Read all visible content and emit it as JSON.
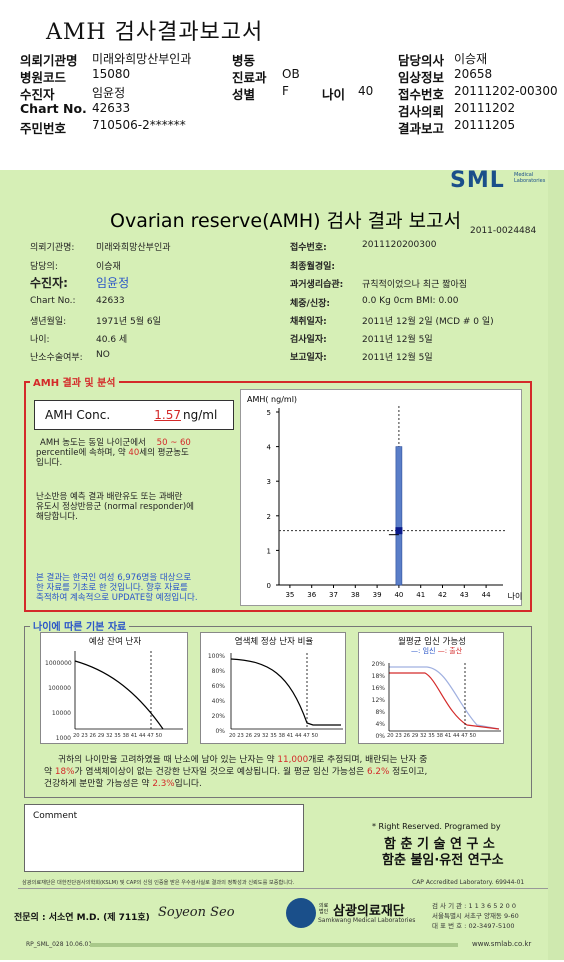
{
  "header": {
    "title": "AMH 검사결과보고서",
    "rows": [
      {
        "l1": "의뢰기관명",
        "v1": "미래와희망산부인과",
        "l2": "병동",
        "v2": "",
        "l3": "",
        "v3": "",
        "l4": "담당의사",
        "v4": "이승재"
      },
      {
        "l1": "병원코드",
        "v1": "15080",
        "l2": "진료과",
        "v2": "OB",
        "l3": "",
        "v3": "",
        "l4": "임상정보",
        "v4": "20658"
      },
      {
        "l1": "수진자",
        "v1": "임윤정",
        "l2": "성별",
        "v2": "F",
        "l3": "나이",
        "v3": "40",
        "l4": "접수번호",
        "v4": "20111202-00300"
      },
      {
        "l1": "Chart No.",
        "v1": "42633",
        "l2": "",
        "v2": "",
        "l3": "",
        "v3": "",
        "l4": "검사의뢰",
        "v4": "20111202"
      },
      {
        "l1": "주민번호",
        "v1": "710506-2******",
        "l2": "",
        "v2": "",
        "l3": "",
        "v3": "",
        "l4": "결과보고",
        "v4": "20111205"
      }
    ]
  },
  "report": {
    "logo": "SML",
    "logo_sub": "Medical Laboratories",
    "title": "Ovarian reserve(AMH) 검사 결과 보고서",
    "doc_no": "2011-0024484",
    "left": [
      {
        "label": "의뢰기관명:",
        "value": "미래와희망산부인과"
      },
      {
        "label": "담당의:",
        "value": "이승재"
      },
      {
        "label": "수진자:",
        "value": "임윤정"
      },
      {
        "label": "Chart No.:",
        "value": "42633"
      },
      {
        "label": "생년월일:",
        "value": "1971년 5월 6일"
      },
      {
        "label": "나이:",
        "value": "40.6 세"
      },
      {
        "label": "난소수술여부:",
        "value": "NO"
      }
    ],
    "right": [
      {
        "label": "접수번호:",
        "value": "2011120200300"
      },
      {
        "label": "최종월경일:",
        "value": ""
      },
      {
        "label": "과거생리습관:",
        "value": "규칙적이었으나 최근 짧아짐"
      },
      {
        "label": "체중/신장:",
        "value": "0.0 Kg      0cm   BMI:   0.00"
      },
      {
        "label": "채취일자:",
        "value": "2011년 12월 2일   (MCD # 0 일)"
      },
      {
        "label": "검사일자:",
        "value": "2011년 12월 5일"
      },
      {
        "label": "보고일자:",
        "value": "2011년 12월 5일"
      }
    ]
  },
  "amh": {
    "section_title": "AMH 결과 및 분석",
    "conc_label": "AMH Conc.",
    "conc_value": "1.57",
    "conc_unit": "ng/ml",
    "p1a": "AMH 농도는 동일 나이군에서",
    "p1_pct": "50 ~ 60",
    "p1b": "percentile에 속하며, 약",
    "p1_age": "40",
    "p1c": "세의 평균농도",
    "p1d": "입니다.",
    "p2": [
      "난소반응 예측 결과 배란유도 또는 과배란",
      "유도시 정상반응군 (normal responder)에",
      "해당합니다."
    ],
    "p3": [
      "본 결과는 한국인 여성 6,976명을 대상으로",
      "한 자료를 기초로 한 것입니다. 향후 자료를",
      "축적하여 계속적으로 UPDATE할 예정입니다."
    ]
  },
  "chart_data": {
    "type": "scatter",
    "title": "AMH( ng/ml)",
    "xlabel": "나이",
    "ylabel": "AMH( ng/ml)",
    "x_ticks": [
      35,
      36,
      37,
      38,
      39,
      40,
      41,
      42,
      43,
      44
    ],
    "y_ticks": [
      0,
      1,
      2,
      3,
      4,
      5
    ],
    "xlim": [
      34.5,
      44.5
    ],
    "ylim": [
      0,
      5
    ],
    "point": {
      "x": 40,
      "y": 1.57
    },
    "range_bar": {
      "x": 40,
      "y_low": 0,
      "y_high": 4.0
    },
    "reference_line_y": 1.57,
    "grid": false
  },
  "age": {
    "section_title": "나이에 따른 기본 자료",
    "chart1_title": "예상 잔여 난자",
    "chart1_yticks": [
      "1000000",
      "100000",
      "10000",
      "1000"
    ],
    "chart2_title": "염색체 정상 난자 비율",
    "chart2_yticks": [
      "100%",
      "80%",
      "60%",
      "40%",
      "20%",
      "0%"
    ],
    "chart3_title": "월평균 임신 가능성",
    "chart3_legend_a": "—: 임신",
    "chart3_legend_b": "—: 출산",
    "chart3_yticks": [
      "20%",
      "18%",
      "16%",
      "12%",
      "8%",
      "4%",
      "0%"
    ],
    "x_axis": "20 23 26 29 32 35 38 41 44 47 50",
    "x_axis3": "20 23 26 29 32 35 38 41 44 47 50",
    "t1a": "귀하의 나이만을 고려하였을 때 난소에 남아 있는 난자는 약",
    "t1_n": "11,000",
    "t1b": "개로 추정되며, 배란되는 난자 중",
    "t2a": "약",
    "t2_pct": "18%",
    "t2b": "가 염색체이상이 없는 건강한 난자일 것으로 예상됩니다. 월 평균 임신 가능성은",
    "t2_preg": "6.2%",
    "t2c": "정도이고,",
    "t3a": "건강하게 분만할 가능성은 약",
    "t3_birth": "2.3%",
    "t3b": "입니다."
  },
  "footer": {
    "comment_label": "Comment",
    "rights": "* Right Reserved. Programed by",
    "org1": "함 춘 기 술 연 구 소",
    "org2": "함춘 불임·유전 연구소",
    "cert": "삼광의료재단은 대한진단검사의학회(KSLM) 및 CAP의 신임 인증을 받은 우수검사실로 결과의 정확성과 신뢰도를 보증합니다.",
    "cap": "CAP  Accredited  Laboratory.  69944-01",
    "doctor": "전문의 : 서소연 M.D. (제 711호)",
    "signature": "Soyeon Seo",
    "foundation_small": "의료법인",
    "foundation": "삼광의료재단",
    "foundation_en": "Samkwang Medical Laboratories",
    "phone": "검 사 기 관 : 1 1 3 6 5 2 0 0",
    "address": "서울특별시 서초구 양재동 9-60",
    "fax": "대 표 번 호 : 02-3497-5100",
    "form_no": "RP_SML_028  10.06.01",
    "website": "www.smlab.co.kr"
  }
}
